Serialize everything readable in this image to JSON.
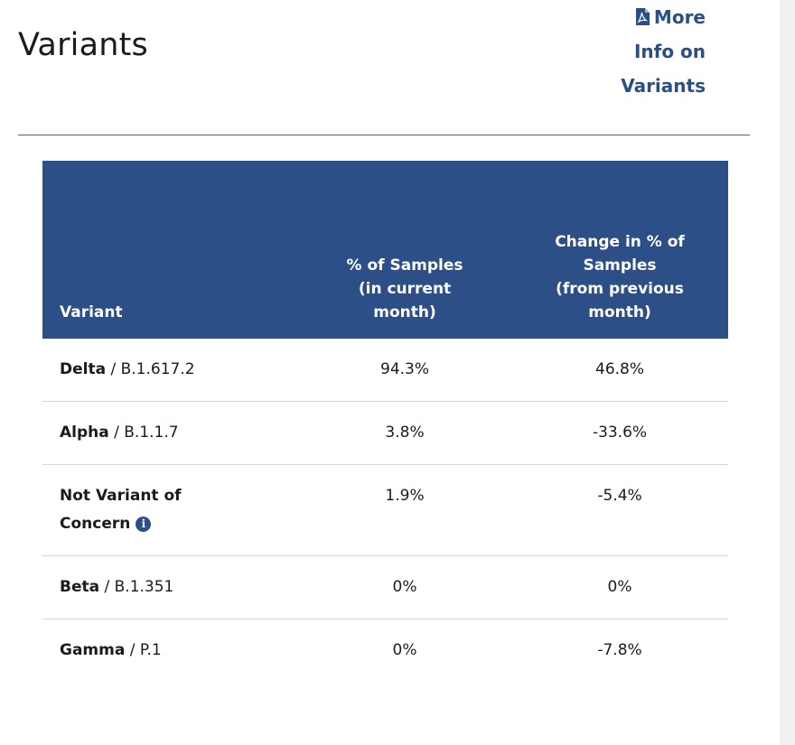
{
  "header": {
    "title": "Variants",
    "more_info_link": {
      "line1": "More",
      "line2": "Info on",
      "line3": "Variants",
      "icon": "pdf-icon"
    }
  },
  "colors": {
    "accent": "#2b4f86",
    "link": "#2a4f87",
    "text": "#1b1b1b",
    "divider": "#3a6596",
    "row_border": "#d6d6d6"
  },
  "table": {
    "headers": {
      "variant": "Variant",
      "pct_line1": "% of Samples",
      "pct_line2": "(in current",
      "pct_line3": "month)",
      "change_line1": "Change in % of",
      "change_line2": "Samples",
      "change_line3": "(from previous",
      "change_line4": "month)"
    },
    "rows": [
      {
        "name": "Delta",
        "lineage": " / B.1.617.2",
        "pct": "94.3%",
        "change": "46.8%"
      },
      {
        "name": "Alpha",
        "lineage": " / B.1.1.7",
        "pct": "3.8%",
        "change": "-33.6%"
      },
      {
        "name_line1": "Not Variant of",
        "name_line2": "Concern",
        "info_icon": "i",
        "pct": "1.9%",
        "change": "-5.4%"
      },
      {
        "name": "Beta",
        "lineage": " / B.1.351",
        "pct": "0%",
        "change": "0%"
      },
      {
        "name": "Gamma",
        "lineage": " / P.1",
        "pct": "0%",
        "change": "-7.8%"
      }
    ]
  }
}
